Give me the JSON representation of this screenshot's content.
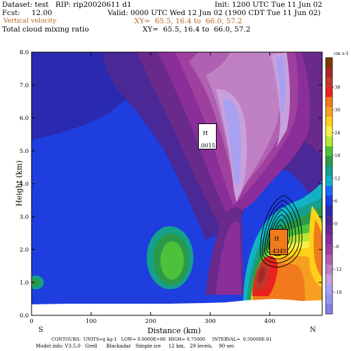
{
  "header": {
    "dataset_line": "Dataset: test   RIP: rip20020611 d1",
    "init_line": "Init: 1200 UTC Tue 11 Jun 02",
    "fcst_line": "Fcst:     12.00",
    "valid_line": "Valid: 0000 UTC Wed 12 Jun 02 (1900 CDT Tue 11 Jun 02)",
    "field1_name": "Vertical velocity",
    "field1_xy": "XY=  65.5, 16.4 to  66.0, 57.2",
    "field2_name": "Total cloud mixing ratio",
    "field2_xy": "XY=  65.5, 16.4 to  66.0, 57.2"
  },
  "footer": {
    "line1": "CONTOURS:  UNITS=g kg-1   LOW= 0.0000E+00  HIGH= 0.75000     INTERVAL=  0.50000E-01",
    "line2": "Model info: V3.5.0   Grell      Blackadar   Simple ice     12 km,   29 levels,    90 sec"
  },
  "colorbar": {
    "unit_label": "cm s-1",
    "tick_labels": [
      "38",
      "30",
      "24",
      "18",
      "12",
      "6",
      "0",
      "-6",
      "-12",
      "-18"
    ],
    "colors": [
      "#7a3a0a",
      "#a52a2a",
      "#c0392b",
      "#e8231f",
      "#f07a1c",
      "#f7a020",
      "#ffd11a",
      "#f5f04a",
      "#b8e635",
      "#4cc23a",
      "#2a9a4a",
      "#14a08c",
      "#12b2c6",
      "#1e66ff",
      "#1e3ee0",
      "#2a2ab0",
      "#4a2896",
      "#6a2a8c",
      "#8a2e9a",
      "#a0409e",
      "#b060b0",
      "#c080c4",
      "#c8a0dc",
      "#a8a0f0",
      "#9494f0",
      "#8080e8"
    ]
  },
  "markers": [
    {
      "label": "H",
      "value": ".0015"
    },
    {
      "label": "H",
      "value": ".4345"
    }
  ],
  "chart_data": {
    "type": "heatmap",
    "title": "",
    "xlabel": "Distance (km)",
    "ylabel": "Height (km)",
    "xlim": [
      0,
      488
    ],
    "ylim": [
      0,
      8
    ],
    "x_ticks": [
      0,
      100,
      200,
      300,
      400
    ],
    "x_tick_labels": [
      "0",
      "100",
      "200",
      "300",
      "400"
    ],
    "y_ticks": [
      0,
      1,
      2,
      3,
      4,
      5,
      6,
      7,
      8
    ],
    "y_tick_labels": [
      "0.0",
      "1.0",
      "2.0",
      "3.0",
      "4.0",
      "5.0",
      "6.0",
      "7.0",
      "8.0"
    ],
    "x_end_labels": {
      "left": "S",
      "right": "N"
    },
    "max_markers": [
      {
        "x": 290,
        "y": 5.7,
        "label": "H .0015"
      },
      {
        "x": 405,
        "y": 2.4,
        "label": "H .4345"
      }
    ]
  }
}
